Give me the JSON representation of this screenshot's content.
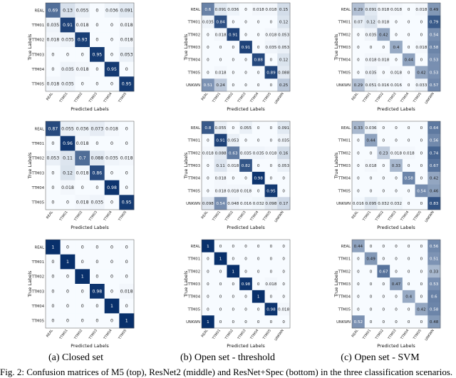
{
  "captions": [
    "(a) Closed set",
    "(b) Open set - threshold",
    "(c) Open set - SVM"
  ],
  "figure_caption": "Fig. 2: Confusion matrices of M5 (top), ResNet2 (middle) and ResNet+Spec (bottom) in the three classification scenarios.",
  "colors": {
    "low": "#f7fbff",
    "high": "#08306b"
  },
  "chart_data": [
    {
      "type": "heatmap",
      "column": "a",
      "row": "top",
      "xlabel": "Predicted Labels",
      "ylabel": "True Labels",
      "rows": [
        "REAL",
        "TTM01",
        "TTM02",
        "TTM03",
        "TTM04",
        "TTM05"
      ],
      "cols": [
        "REAL",
        "TTM01",
        "TTM02",
        "TTM03",
        "TTM04",
        "TTM05"
      ],
      "values": [
        [
          0.69,
          0.13,
          0.055,
          0,
          0.036,
          0.091
        ],
        [
          0.035,
          0.91,
          0.018,
          0,
          0,
          0.018
        ],
        [
          0.018,
          0.035,
          0.93,
          0,
          0,
          0.018
        ],
        [
          0,
          0,
          0,
          0.95,
          0,
          0.053
        ],
        [
          0,
          0.035,
          0.018,
          0,
          0.95,
          0
        ],
        [
          0.018,
          0.035,
          0,
          0,
          0,
          0.95
        ]
      ]
    },
    {
      "type": "heatmap",
      "column": "b",
      "row": "top",
      "xlabel": "Predicted Labels",
      "ylabel": "True Labels",
      "rows": [
        "REAL",
        "TTM01",
        "TTM02",
        "TTM03",
        "TTM04",
        "TTM05",
        "UNKWN"
      ],
      "cols": [
        "REAL",
        "TTM01",
        "TTM02",
        "TTM03",
        "TTM04",
        "TTM05",
        "UNKWN"
      ],
      "values": [
        [
          0.6,
          0.091,
          0.036,
          0,
          0.018,
          0.018,
          0.15
        ],
        [
          0.035,
          0.84,
          0,
          0,
          0,
          0,
          0.12
        ],
        [
          0,
          0.018,
          0.91,
          0,
          0,
          0.018,
          0.053
        ],
        [
          0,
          0,
          0,
          0.91,
          0,
          0.035,
          0.053
        ],
        [
          0,
          0,
          0,
          0,
          0.88,
          0,
          0.12
        ],
        [
          0,
          0.018,
          0,
          0,
          0,
          0.89,
          0.088
        ],
        [
          0.51,
          0.24,
          0,
          0,
          0,
          0,
          0.25
        ]
      ]
    },
    {
      "type": "heatmap",
      "column": "c",
      "row": "top",
      "xlabel": "Predicted Labels",
      "ylabel": "True Labels",
      "rows": [
        "REAL",
        "TTM01",
        "TTM02",
        "TTM03",
        "TTM04",
        "TTM05",
        "UNKWN"
      ],
      "cols": [
        "REAL",
        "TTM01",
        "TTM02",
        "TTM03",
        "TTM04",
        "TTM05",
        "UNKWN"
      ],
      "values": [
        [
          0.29,
          0.091,
          0.018,
          0.018,
          0,
          0.018,
          0.49
        ],
        [
          0.07,
          0.12,
          0.018,
          0,
          0,
          0,
          0.79
        ],
        [
          0,
          0.035,
          0.42,
          0,
          0,
          0,
          0.54
        ],
        [
          0,
          0,
          0,
          0.4,
          0,
          0.018,
          0.58
        ],
        [
          0,
          0.018,
          0.018,
          0,
          0.44,
          0,
          0.53
        ],
        [
          0,
          0.035,
          0,
          0.018,
          0,
          0.42,
          0.53
        ],
        [
          0.29,
          0.051,
          0.016,
          0.016,
          0,
          0.033,
          0.57
        ]
      ]
    },
    {
      "type": "heatmap",
      "column": "a",
      "row": "middle",
      "xlabel": "Predicted Labels",
      "ylabel": "True Labels",
      "rows": [
        "REAL",
        "TTM01",
        "TTM02",
        "TTM03",
        "TTM04",
        "TTM05"
      ],
      "cols": [
        "REAL",
        "TTM01",
        "TTM02",
        "TTM03",
        "TTM04",
        "TTM05"
      ],
      "values": [
        [
          0.87,
          0.055,
          0.036,
          0.073,
          0.018,
          0
        ],
        [
          0,
          0.96,
          0.018,
          0,
          0,
          0
        ],
        [
          0.053,
          0.11,
          0.7,
          0.088,
          0.035,
          0.018
        ],
        [
          0,
          0.12,
          0.018,
          0.86,
          0,
          0
        ],
        [
          0,
          0.018,
          0,
          0,
          0.98,
          0
        ],
        [
          0,
          0,
          0.018,
          0.035,
          0,
          0.95
        ]
      ]
    },
    {
      "type": "heatmap",
      "column": "b",
      "row": "middle",
      "xlabel": "Predicted Labels",
      "ylabel": "True Labels",
      "rows": [
        "REAL",
        "TTM01",
        "TTM02",
        "TTM03",
        "TTM04",
        "TTM05",
        "UNKWN"
      ],
      "cols": [
        "REAL",
        "TTM01",
        "TTM02",
        "TTM03",
        "TTM04",
        "TTM05",
        "UNKWN"
      ],
      "values": [
        [
          0.8,
          0.055,
          0,
          0.055,
          0,
          0,
          0.091
        ],
        [
          0,
          0.91,
          0.053,
          0,
          0,
          0,
          0.035
        ],
        [
          0.018,
          0.088,
          0.63,
          0.035,
          0.035,
          0.018,
          0.16
        ],
        [
          0,
          0.11,
          0.018,
          0.82,
          0,
          0,
          0.053
        ],
        [
          0,
          0.018,
          0,
          0,
          0.98,
          0,
          0
        ],
        [
          0,
          0.018,
          0.018,
          0.018,
          0,
          0.95,
          0
        ],
        [
          0.098,
          0.54,
          0.048,
          0.016,
          0.032,
          0.098,
          0.17
        ]
      ]
    },
    {
      "type": "heatmap",
      "column": "c",
      "row": "middle",
      "xlabel": "Predicted Labels",
      "ylabel": "True Labels",
      "rows": [
        "REAL",
        "TTM01",
        "TTM02",
        "TTM03",
        "TTM04",
        "TTM05",
        "UNKWN"
      ],
      "cols": [
        "REAL",
        "TTM01",
        "TTM02",
        "TTM03",
        "TTM04",
        "TTM05",
        "UNKWN"
      ],
      "values": [
        [
          0.33,
          0.036,
          0,
          0,
          0,
          0,
          0.64
        ],
        [
          0,
          0.44,
          0,
          0,
          0,
          0,
          0.56
        ],
        [
          0,
          0,
          0.23,
          0.018,
          0.018,
          0,
          0.74
        ],
        [
          0,
          0.018,
          0,
          0.33,
          0,
          0,
          0.67
        ],
        [
          0,
          0,
          0,
          0,
          0.58,
          0,
          0.42
        ],
        [
          0,
          0,
          0,
          0,
          0,
          0.54,
          0.46
        ],
        [
          0.016,
          0.095,
          0.032,
          0.032,
          0,
          0,
          0.83
        ]
      ]
    },
    {
      "type": "heatmap",
      "column": "a",
      "row": "bottom",
      "xlabel": "Predicted Labels",
      "ylabel": "True Labels",
      "rows": [
        "REAL",
        "TTM01",
        "TTM02",
        "TTM03",
        "TTM04",
        "TTM05"
      ],
      "cols": [
        "REAL",
        "TTM01",
        "TTM02",
        "TTM03",
        "TTM04",
        "TTM05"
      ],
      "values": [
        [
          1,
          0,
          0,
          0,
          0,
          0
        ],
        [
          0,
          1,
          0,
          0,
          0,
          0
        ],
        [
          0,
          0,
          1,
          0,
          0,
          0
        ],
        [
          0,
          0,
          0,
          0.98,
          0,
          0.018
        ],
        [
          0,
          0,
          0,
          0,
          1,
          0
        ],
        [
          0,
          0,
          0,
          0,
          0,
          1
        ]
      ]
    },
    {
      "type": "heatmap",
      "column": "b",
      "row": "bottom",
      "xlabel": "Predicted Labels",
      "ylabel": "True Labels",
      "rows": [
        "REAL",
        "TTM01",
        "TTM02",
        "TTM03",
        "TTM04",
        "TTM05",
        "UNKWN"
      ],
      "cols": [
        "REAL",
        "TTM01",
        "TTM02",
        "TTM03",
        "TTM04",
        "TTM05",
        "UNKWN"
      ],
      "values": [
        [
          1,
          0,
          0,
          0,
          0,
          0,
          0
        ],
        [
          0,
          1,
          0,
          0,
          0,
          0,
          0
        ],
        [
          0,
          0,
          1,
          0,
          0,
          0,
          0
        ],
        [
          0,
          0,
          0,
          0.98,
          0,
          0.018,
          0
        ],
        [
          0,
          0,
          0,
          0,
          1,
          0,
          0
        ],
        [
          0,
          0,
          0,
          0,
          0,
          0.98,
          0.018
        ],
        [
          1,
          0,
          0,
          0,
          0,
          0,
          0
        ]
      ]
    },
    {
      "type": "heatmap",
      "column": "c",
      "row": "bottom",
      "xlabel": "Predicted Labels",
      "ylabel": "True Labels",
      "rows": [
        "REAL",
        "TTM01",
        "TTM02",
        "TTM03",
        "TTM04",
        "TTM05",
        "UNKWN"
      ],
      "cols": [
        "REAL",
        "TTM01",
        "TTM02",
        "TTM03",
        "TTM04",
        "TTM05",
        "UNKWN"
      ],
      "values": [
        [
          0.44,
          0,
          0,
          0,
          0,
          0,
          0.56
        ],
        [
          0,
          0.49,
          0,
          0,
          0,
          0,
          0.51
        ],
        [
          0,
          0,
          0.67,
          0,
          0,
          0,
          0.33
        ],
        [
          0,
          0,
          0,
          0.47,
          0,
          0,
          0.53
        ],
        [
          0,
          0,
          0,
          0,
          0.4,
          0,
          0.6
        ],
        [
          0,
          0,
          0,
          0,
          0,
          0.42,
          0.58
        ],
        [
          0.52,
          0,
          0,
          0,
          0,
          0,
          0.48
        ]
      ]
    }
  ]
}
